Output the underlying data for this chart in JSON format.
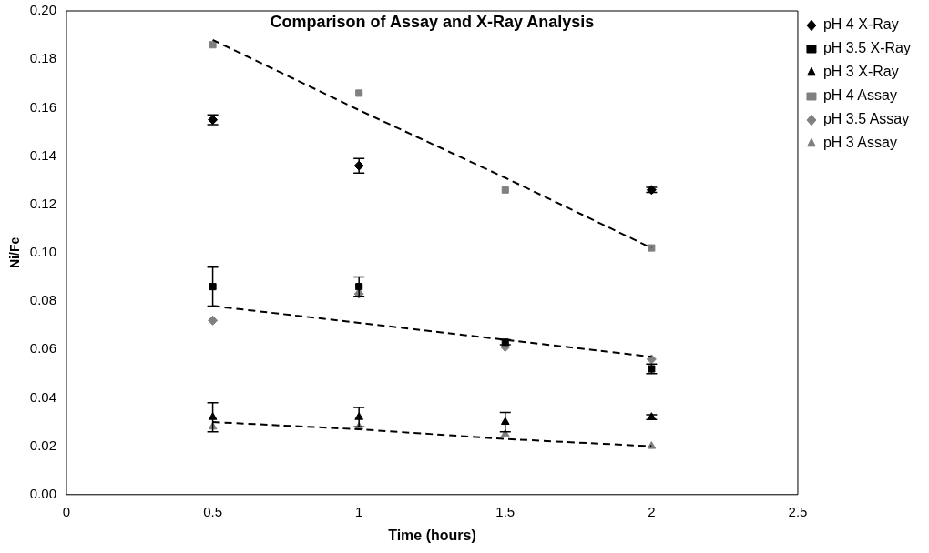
{
  "chart_data": {
    "type": "scatter",
    "title": "Comparison of Assay and X-Ray Analysis",
    "xlabel": "Time (hours)",
    "ylabel": "Ni/Fe",
    "x": [
      0.5,
      1,
      1.5,
      2
    ],
    "series": [
      {
        "name": "pH 4 X-Ray",
        "color": "#000000",
        "marker": "diamond",
        "values": [
          0.155,
          0.136,
          null,
          0.126
        ],
        "errors": [
          0.002,
          0.003,
          null,
          0.001
        ]
      },
      {
        "name": "pH 3.5 X-Ray",
        "color": "#000000",
        "marker": "square",
        "values": [
          0.086,
          0.086,
          0.063,
          0.052
        ],
        "errors": [
          0.008,
          0.004,
          0.001,
          0.002
        ]
      },
      {
        "name": "pH 3 X-Ray",
        "color": "#000000",
        "marker": "triangle",
        "values": [
          0.032,
          0.032,
          0.03,
          0.032
        ],
        "errors": [
          0.006,
          0.004,
          0.004,
          0.001
        ]
      },
      {
        "name": "pH 4 Assay",
        "color": "#808080",
        "marker": "square",
        "values": [
          0.186,
          0.166,
          0.126,
          0.102
        ]
      },
      {
        "name": "pH 3.5 Assay",
        "color": "#808080",
        "marker": "diamond",
        "values": [
          0.072,
          0.083,
          0.061,
          0.056
        ]
      },
      {
        "name": "pH 3 Assay",
        "color": "#808080",
        "marker": "triangle",
        "values": [
          0.028,
          0.028,
          0.025,
          0.02
        ]
      },
      {
        "type": "line",
        "color": "#000000",
        "line_style": "dashed",
        "marker": "none",
        "values": [
          0.188,
          0.159,
          0.131,
          0.102
        ]
      },
      {
        "type": "line",
        "color": "#000000",
        "line_style": "dashed",
        "marker": "none",
        "values": [
          0.078,
          0.071,
          0.064,
          0.057
        ]
      },
      {
        "type": "line",
        "color": "#000000",
        "line_style": "dashed",
        "marker": "none",
        "values": [
          0.03,
          0.027,
          0.023,
          0.02
        ]
      }
    ],
    "xlim": [
      0,
      2.5
    ],
    "xticks": [
      {
        "value": 0,
        "label": "0"
      },
      {
        "value": 0.5,
        "label": "0.5"
      },
      {
        "value": 1,
        "label": "1"
      },
      {
        "value": 1.5,
        "label": "1.5"
      },
      {
        "value": 2,
        "label": "2"
      },
      {
        "value": 2.5,
        "label": "2.5"
      }
    ],
    "ylim": [
      0,
      0.2
    ],
    "yticks": [
      {
        "value": 0,
        "label": "0.00"
      },
      {
        "value": 0.02,
        "label": "0.02"
      },
      {
        "value": 0.04,
        "label": "0.04"
      },
      {
        "value": 0.06,
        "label": "0.06"
      },
      {
        "value": 0.08,
        "label": "0.08"
      },
      {
        "value": 0.1,
        "label": "0.10"
      },
      {
        "value": 0.12,
        "label": "0.12"
      },
      {
        "value": 0.14,
        "label": "0.14"
      },
      {
        "value": 0.16,
        "label": "0.16"
      },
      {
        "value": 0.18,
        "label": "0.18"
      },
      {
        "value": 0.2,
        "label": "0.20"
      }
    ],
    "grid": false,
    "legend": "top right"
  }
}
